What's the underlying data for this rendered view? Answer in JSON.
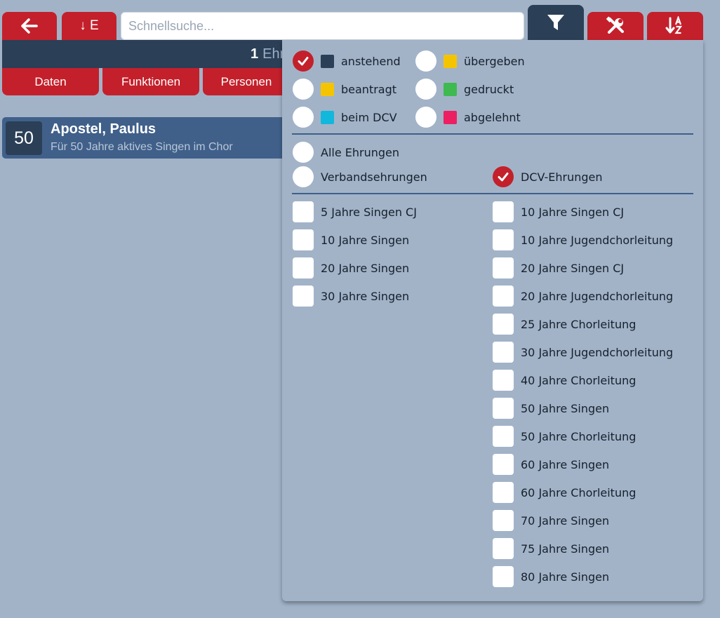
{
  "toolbar": {
    "back_icon": "arrow-left-icon",
    "sort_e_label": "↓ E",
    "search_placeholder": "Schnellsuche...",
    "filter_icon": "filter-icon",
    "tools_icon": "tools-icon",
    "sort_az_icon": "sort-alpha-down-icon"
  },
  "summary": {
    "count": "1",
    "label": "Ehr"
  },
  "tabs": [
    {
      "label": "Daten"
    },
    {
      "label": "Funktionen"
    },
    {
      "label": "Personen"
    }
  ],
  "record": {
    "badge": "50",
    "name": "Apostel, Paulus",
    "description": "Für 50 Jahre aktives Singen im Chor"
  },
  "filter": {
    "status": [
      {
        "label": "anstehend",
        "checked": true,
        "color": "#2b3f57"
      },
      {
        "label": "übergeben",
        "checked": false,
        "color": "#f5c400"
      },
      {
        "label": "beantragt",
        "checked": false,
        "color": "#f5c400"
      },
      {
        "label": "gedruckt",
        "checked": false,
        "color": "#3fba50"
      },
      {
        "label": "beim DCV",
        "checked": false,
        "color": "#12b8dc"
      },
      {
        "label": "abgelehnt",
        "checked": false,
        "color": "#ec1f63"
      }
    ],
    "scope": [
      {
        "label": "Alle Ehrungen",
        "checked": false
      },
      {
        "label": "Verbandsehrungen",
        "checked": false
      },
      {
        "label": "DCV-Ehrungen",
        "checked": true
      }
    ],
    "left_items": [
      {
        "label": "5 Jahre Singen CJ",
        "checked": false
      },
      {
        "label": "10 Jahre Singen",
        "checked": false
      },
      {
        "label": "20 Jahre Singen",
        "checked": false
      },
      {
        "label": "30 Jahre Singen",
        "checked": false
      }
    ],
    "right_items": [
      {
        "label": "10 Jahre Singen CJ",
        "checked": false
      },
      {
        "label": "10 Jahre Jugendchorleitung",
        "checked": false
      },
      {
        "label": "20 Jahre Singen CJ",
        "checked": false
      },
      {
        "label": "20 Jahre Jugendchorleitung",
        "checked": false
      },
      {
        "label": "25 Jahre Chorleitung",
        "checked": false
      },
      {
        "label": "30 Jahre Jugendchorleitung",
        "checked": false
      },
      {
        "label": "40 Jahre Chorleitung",
        "checked": false
      },
      {
        "label": "50 Jahre Singen",
        "checked": false
      },
      {
        "label": "50 Jahre Chorleitung",
        "checked": false
      },
      {
        "label": "60 Jahre Singen",
        "checked": false
      },
      {
        "label": "60 Jahre Chorleitung",
        "checked": false
      },
      {
        "label": "70 Jahre Singen",
        "checked": false
      },
      {
        "label": "75 Jahre Singen",
        "checked": false
      },
      {
        "label": "80 Jahre Singen",
        "checked": false
      }
    ]
  },
  "colors": {
    "accent_red": "#c3202b",
    "navy": "#2b3f57",
    "background": "#a2b3c8"
  }
}
